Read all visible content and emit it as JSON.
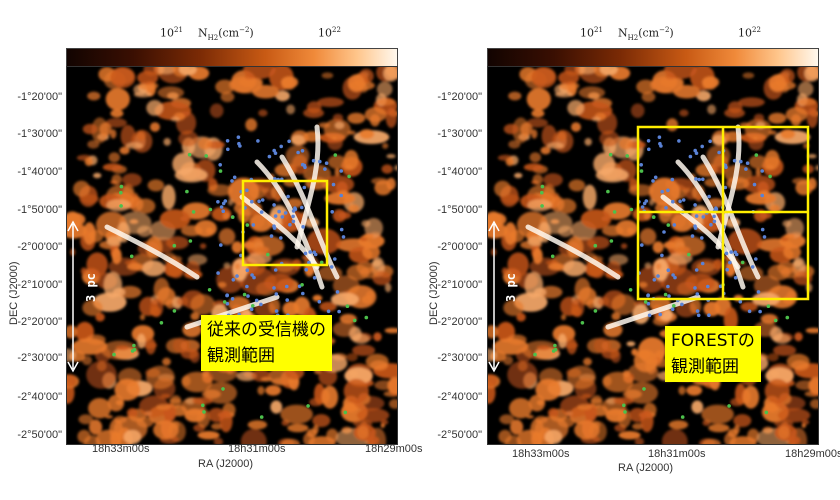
{
  "colorbar": {
    "tick_low": "10",
    "tick_low_exp": "21",
    "label_main": "N",
    "label_sub": "H2",
    "label_unit": "(cm",
    "label_unit_exp": "−2",
    "label_close": ")",
    "tick_high": "10",
    "tick_high_exp": "22"
  },
  "axes": {
    "dec_label": "DEC (J2000)",
    "ra_label": "RA (J2000)",
    "dec_ticks": [
      "-1°20'00\"",
      "-1°30'00\"",
      "-1°40'00\"",
      "-1°50'00\"",
      "-2°00'00\"",
      "-2°10'00\"",
      "-2°20'00\"",
      "-2°30'00\"",
      "-2°40'00\"",
      "-2°50'00\""
    ],
    "ra_ticks": [
      "18h33m00s",
      "18h31m00s",
      "18h29m00s"
    ]
  },
  "scalebar": {
    "label": "3 pc"
  },
  "panels": {
    "left": {
      "callout": "従来の受信機の\n観測範囲"
    },
    "right": {
      "callout": "FORESTの\n観測範囲"
    }
  },
  "colors": {
    "callout_bg": "#ffff00",
    "box": "#ffee00",
    "dust": "#e87a2c",
    "core_blue": "#5a82d6",
    "core_green": "#4cc04c"
  }
}
